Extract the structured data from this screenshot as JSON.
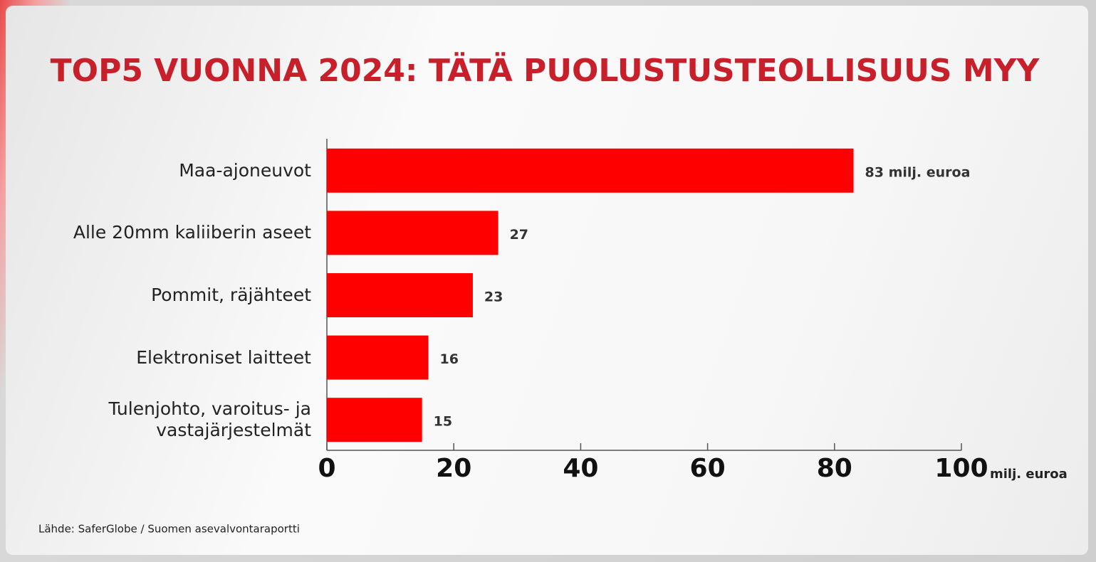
{
  "chart_data": {
    "type": "barh",
    "title": "TOP5 VUONNA 2024: TÄTÄ PUOLUSTUSTEOLLISUUS MYY",
    "categories": [
      "Maa-ajoneuvot",
      "Alle 20mm kaliiberin aseet",
      "Pommit, räjähteet",
      "Elektroniset laitteet",
      "Tulenjohto, varoitus- ja vastajärjestelmät"
    ],
    "values": [
      83,
      27,
      23,
      16,
      15
    ],
    "value_labels": [
      "83 milj. euroa",
      "27",
      "23",
      "16",
      "15"
    ],
    "color": "#ff0000",
    "xlim": [
      0,
      100
    ],
    "xticks": [
      0,
      20,
      40,
      60,
      80,
      100
    ],
    "x_label": "milj. euroa",
    "source": "Lähde: SaferGlobe / Suomen asevalvontaraportti"
  }
}
